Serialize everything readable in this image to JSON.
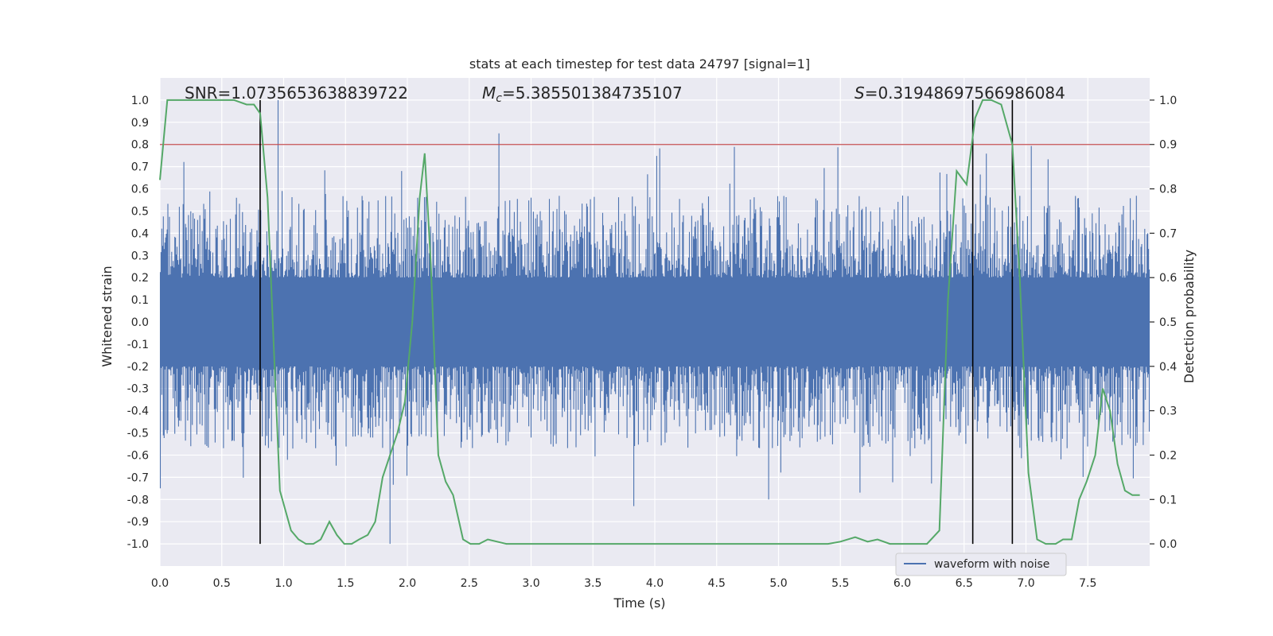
{
  "chart_data": {
    "type": "line",
    "title": "stats at each timestep for test data 24797 [signal=1]",
    "xlabel": "Time (s)",
    "ylabel": "Whitened strain",
    "y2label": "Detection probability",
    "xlim": [
      0.0,
      8.0
    ],
    "ylim": [
      -1.1,
      1.1
    ],
    "y2lim": [
      -0.05,
      1.05
    ],
    "xticks": [
      "0.0",
      "0.5",
      "1.0",
      "1.5",
      "2.0",
      "2.5",
      "3.0",
      "3.5",
      "4.0",
      "4.5",
      "5.0",
      "5.5",
      "6.0",
      "6.5",
      "7.0",
      "7.5"
    ],
    "yticks": [
      "1.0",
      "0.9",
      "0.8",
      "0.7",
      "0.6",
      "0.5",
      "0.4",
      "0.3",
      "0.2",
      "0.1",
      "0.0",
      "-0.1",
      "-0.2",
      "-0.3",
      "-0.4",
      "-0.5",
      "-0.6",
      "-0.7",
      "-0.8",
      "-0.9",
      "-1.0"
    ],
    "y2ticks": [
      "1.0",
      "0.9",
      "0.8",
      "0.7",
      "0.6",
      "0.5",
      "0.4",
      "0.3",
      "0.2",
      "0.1",
      "0.0"
    ],
    "grid": true,
    "legend_position": "lower right",
    "annotations": {
      "snr": "SNR=1.0735653638839722",
      "mc_symbol": "M",
      "mc_sub": "c",
      "mc_value": "=5.385501384735107",
      "s_symbol": "S",
      "s_value": "=0.31948697566986084"
    },
    "threshold": 0.9,
    "vertical_markers": [
      0.81,
      6.57,
      6.89
    ],
    "series": [
      {
        "name": "waveform with noise",
        "color": "#4c72b0",
        "band_envelope": {
          "core": 0.2,
          "typical_peak": 0.45,
          "max_peak": 1.0,
          "min_trough": -1.0
        }
      },
      {
        "color": "#55a868",
        "x": [
          0.0,
          0.06,
          0.12,
          0.2,
          0.3,
          0.4,
          0.5,
          0.6,
          0.7,
          0.76,
          0.81,
          0.87,
          0.93,
          0.97,
          1.0,
          1.06,
          1.12,
          1.18,
          1.24,
          1.3,
          1.37,
          1.43,
          1.49,
          1.55,
          1.61,
          1.68,
          1.74,
          1.8,
          1.86,
          1.92,
          1.98,
          2.04,
          2.1,
          2.14,
          2.19,
          2.25,
          2.31,
          2.37,
          2.45,
          2.51,
          2.58,
          2.65,
          2.8,
          3.0,
          3.2,
          3.4,
          3.6,
          3.8,
          4.0,
          4.2,
          4.5,
          4.8,
          5.0,
          5.2,
          5.4,
          5.5,
          5.62,
          5.72,
          5.8,
          5.9,
          6.0,
          6.2,
          6.3,
          6.37,
          6.44,
          6.52,
          6.59,
          6.65,
          6.72,
          6.8,
          6.89,
          6.95,
          7.02,
          7.09,
          7.16,
          7.24,
          7.3,
          7.37,
          7.43,
          7.49,
          7.56,
          7.62,
          7.68,
          7.74,
          7.8,
          7.86,
          7.92
        ],
        "y": [
          0.82,
          1.0,
          1.0,
          1.0,
          1.0,
          1.0,
          1.0,
          1.0,
          0.99,
          0.99,
          0.97,
          0.78,
          0.38,
          0.12,
          0.09,
          0.03,
          0.01,
          0.0,
          0.0,
          0.01,
          0.05,
          0.02,
          0.0,
          0.0,
          0.01,
          0.02,
          0.05,
          0.15,
          0.2,
          0.25,
          0.32,
          0.5,
          0.78,
          0.88,
          0.63,
          0.2,
          0.14,
          0.11,
          0.01,
          0.0,
          0.0,
          0.01,
          0.0,
          0.0,
          0.0,
          0.0,
          0.0,
          0.0,
          0.0,
          0.0,
          0.0,
          0.0,
          0.0,
          0.0,
          0.0,
          0.005,
          0.015,
          0.005,
          0.01,
          0.0,
          0.0,
          0.0,
          0.03,
          0.55,
          0.84,
          0.81,
          0.96,
          1.0,
          1.0,
          0.99,
          0.9,
          0.6,
          0.16,
          0.01,
          0.0,
          0.0,
          0.01,
          0.01,
          0.1,
          0.14,
          0.2,
          0.35,
          0.3,
          0.18,
          0.12,
          0.11,
          0.11
        ]
      }
    ]
  }
}
